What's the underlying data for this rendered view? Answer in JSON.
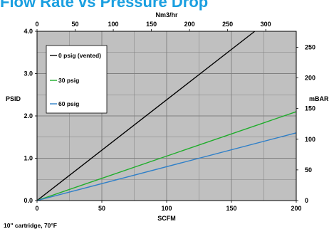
{
  "chart_data": {
    "type": "line",
    "title": "Flow Rate vs Pressure Drop",
    "footnote": "10\" cartridge, 70°F",
    "x_primary": {
      "label": "SCFM",
      "range": [
        0,
        200
      ],
      "ticks": [
        "0",
        "50",
        "100",
        "150",
        "200"
      ],
      "tick_values": [
        0,
        50,
        100,
        150,
        200
      ]
    },
    "x_secondary": {
      "label": "Nm3/hr",
      "range": [
        0,
        340
      ],
      "ticks": [
        "0",
        "50",
        "100",
        "150",
        "200",
        "250",
        "300"
      ],
      "tick_values": [
        0,
        50,
        100,
        150,
        200,
        250,
        300
      ]
    },
    "y_primary": {
      "label": "PSID",
      "range": [
        0,
        4
      ],
      "ticks": [
        "0.0",
        "1.0",
        "2.0",
        "3.0",
        "4.0"
      ],
      "tick_values": [
        0,
        1,
        2,
        3,
        4
      ]
    },
    "y_secondary": {
      "label": "mBAR",
      "range": [
        0,
        276
      ],
      "ticks": [
        "0",
        "50",
        "100",
        "150",
        "200",
        "250"
      ],
      "tick_values": [
        0,
        50,
        100,
        150,
        200,
        250
      ]
    },
    "grid": true,
    "legend_position": "top-left",
    "series": [
      {
        "name": "0 psig (vented)",
        "color": "#000000",
        "x": [
          0,
          168
        ],
        "y": [
          0,
          4.0
        ]
      },
      {
        "name": "30 psig",
        "color": "#1fad2b",
        "x": [
          0,
          200
        ],
        "y": [
          0,
          2.1
        ]
      },
      {
        "name": "60 psig",
        "color": "#2e7fc8",
        "x": [
          0,
          200
        ],
        "y": [
          0,
          1.6
        ]
      }
    ],
    "colors": {
      "title": "#1a9fe0",
      "plot_background": "#c0c0c0",
      "grid": "#7f7f7f"
    }
  }
}
